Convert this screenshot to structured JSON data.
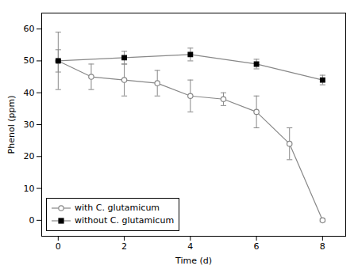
{
  "chart_data": {
    "type": "line",
    "xlabel": "Time (d)",
    "ylabel": "Phenol (ppm)",
    "xlim": [
      -0.5,
      8.7
    ],
    "ylim": [
      -5,
      65
    ],
    "xticks": [
      0,
      2,
      4,
      6,
      8
    ],
    "yticks": [
      0,
      10,
      20,
      30,
      40,
      50,
      60
    ],
    "grid": false,
    "legend": "lower left",
    "series": [
      {
        "name": "with C. glutamicum",
        "color": "#888888",
        "marker": "circle",
        "x": [
          0,
          1,
          2,
          3,
          4,
          5,
          6,
          7,
          8
        ],
        "values": [
          50,
          45,
          44,
          43,
          39,
          38,
          34,
          24,
          0
        ],
        "yerr": [
          9,
          4,
          5,
          4,
          5,
          2,
          5,
          5,
          0.5
        ]
      },
      {
        "name": "without C. glutamicum",
        "color": "#888888",
        "marker": "square",
        "x": [
          0,
          2,
          4,
          6,
          8
        ],
        "values": [
          50,
          51,
          52,
          49,
          44
        ],
        "yerr": [
          3.5,
          2,
          2,
          1.5,
          1.5
        ]
      }
    ]
  }
}
